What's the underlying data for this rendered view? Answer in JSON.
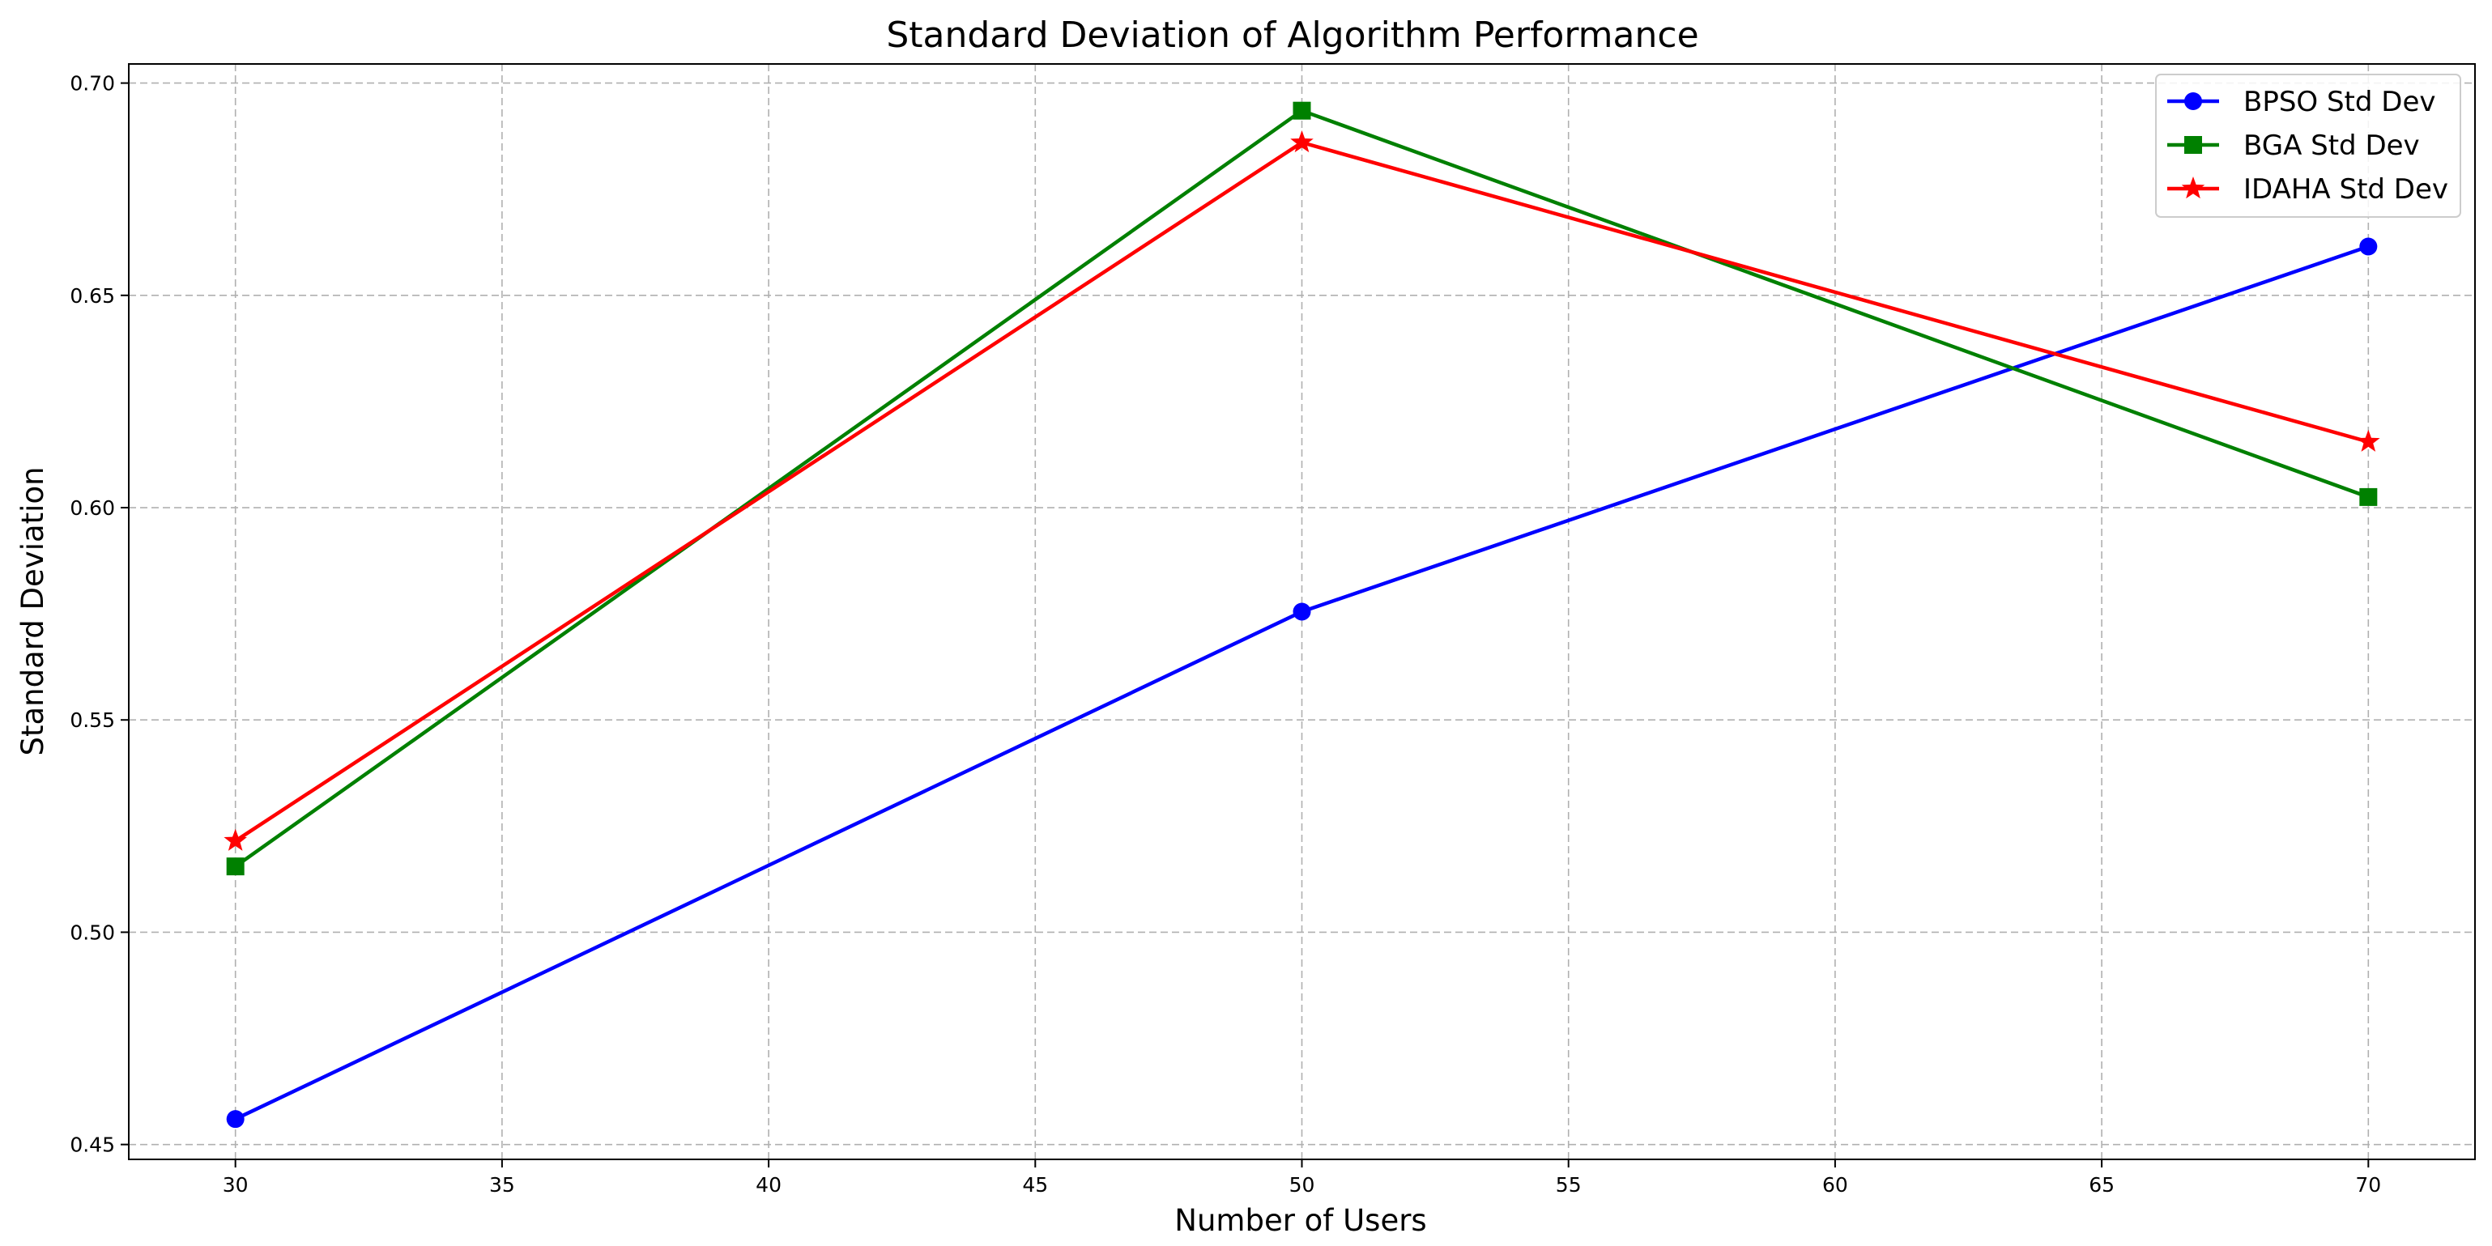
{
  "chart_data": {
    "type": "line",
    "title": "Standard Deviation of Algorithm Performance",
    "xlabel": "Number of Users",
    "ylabel": "Standard Deviation",
    "x": [
      30,
      50,
      70
    ],
    "xlim": [
      28,
      72
    ],
    "ylim": [
      0.4465,
      0.7045
    ],
    "xticks": [
      30,
      35,
      40,
      45,
      50,
      55,
      60,
      65,
      70
    ],
    "yticks": [
      0.45,
      0.5,
      0.55,
      0.6,
      0.65,
      0.7
    ],
    "xtick_labels": [
      "30",
      "35",
      "40",
      "45",
      "50",
      "55",
      "60",
      "65",
      "70"
    ],
    "ytick_labels": [
      "0.45",
      "0.50",
      "0.55",
      "0.60",
      "0.65",
      "0.70"
    ],
    "grid": true,
    "legend_position": "top-right",
    "series": [
      {
        "name": "BPSO Std Dev",
        "values": [
          0.456,
          0.5755,
          0.6615
        ],
        "color": "#0000ff",
        "marker": "circle"
      },
      {
        "name": "BGA Std Dev",
        "values": [
          0.5155,
          0.6935,
          0.6025
        ],
        "color": "#008000",
        "marker": "square"
      },
      {
        "name": "IDAHA Std Dev",
        "values": [
          0.5215,
          0.686,
          0.6155
        ],
        "color": "#ff0000",
        "marker": "star"
      }
    ]
  }
}
